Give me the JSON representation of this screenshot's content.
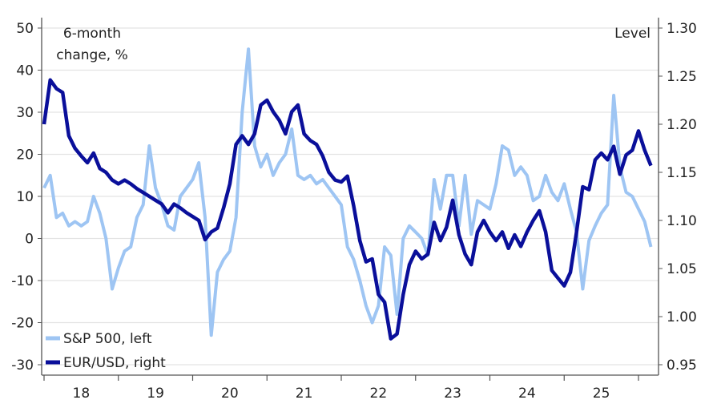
{
  "chart_data": {
    "type": "line",
    "left_axis_label": [
      "6-month",
      "change, %"
    ],
    "right_axis_label": "Level",
    "left_ylim": [
      -30,
      50
    ],
    "left_yticks": [
      -30,
      -20,
      -10,
      0,
      10,
      20,
      30,
      40,
      50
    ],
    "right_ylim": [
      0.95,
      1.3
    ],
    "right_yticks": [
      "0.95",
      "1.00",
      "1.05",
      "1.10",
      "1.15",
      "1.20",
      "1.25",
      "1.30"
    ],
    "xlim": [
      "2018-01",
      "2026-03"
    ],
    "xtick_labels": [
      "18",
      "19",
      "20",
      "21",
      "22",
      "23",
      "24",
      "25"
    ],
    "grid": "horizontal",
    "legend_placement": "bottom-left",
    "x_start": "2018-01",
    "x_frequency": "monthly",
    "series": [
      {
        "name": "S&P 500, left",
        "axis": "left",
        "color": "#9ec5f3",
        "values": [
          12,
          15,
          5,
          6,
          3,
          4,
          3,
          4,
          10,
          6,
          0,
          -12,
          -7,
          -3,
          -2,
          5,
          8,
          22,
          12,
          8,
          3,
          2,
          10,
          12,
          14,
          18,
          5,
          -23,
          -8,
          -5,
          -3,
          5,
          30,
          45,
          22,
          17,
          20,
          15,
          18,
          20,
          26,
          15,
          14,
          15,
          13,
          14,
          12,
          10,
          8,
          -2,
          -5,
          -10,
          -16,
          -20,
          -16,
          -2,
          -4,
          -18,
          0,
          3,
          1.5,
          0,
          -4,
          14,
          7,
          15,
          15,
          3,
          15,
          1,
          9,
          8,
          7,
          13,
          22,
          21,
          15,
          17,
          15,
          9,
          10,
          15,
          11,
          9,
          13,
          7,
          1.5,
          -12,
          -0.5,
          3,
          6,
          8,
          34,
          17,
          11,
          10,
          7,
          4,
          -2
        ]
      },
      {
        "name": "EUR/USD, right",
        "axis": "right",
        "color": "#0a0f9a",
        "values": [
          1.2,
          1.246,
          1.237,
          1.233,
          1.188,
          1.175,
          1.167,
          1.16,
          1.17,
          1.154,
          1.15,
          1.142,
          1.138,
          1.142,
          1.138,
          1.133,
          1.129,
          1.125,
          1.121,
          1.117,
          1.108,
          1.117,
          1.113,
          1.108,
          1.104,
          1.1,
          1.08,
          1.088,
          1.092,
          1.113,
          1.138,
          1.179,
          1.188,
          1.179,
          1.19,
          1.22,
          1.225,
          1.213,
          1.204,
          1.19,
          1.213,
          1.22,
          1.19,
          1.183,
          1.179,
          1.167,
          1.15,
          1.142,
          1.14,
          1.146,
          1.115,
          1.079,
          1.057,
          1.06,
          1.023,
          1.015,
          0.977,
          0.982,
          1.023,
          1.054,
          1.068,
          1.06,
          1.065,
          1.098,
          1.079,
          1.093,
          1.121,
          1.085,
          1.065,
          1.054,
          1.088,
          1.1,
          1.088,
          1.079,
          1.088,
          1.071,
          1.085,
          1.073,
          1.088,
          1.1,
          1.11,
          1.088,
          1.048,
          1.04,
          1.032,
          1.046,
          1.088,
          1.135,
          1.132,
          1.163,
          1.17,
          1.163,
          1.177,
          1.148,
          1.168,
          1.173,
          1.193,
          1.173,
          1.157
        ]
      }
    ]
  }
}
